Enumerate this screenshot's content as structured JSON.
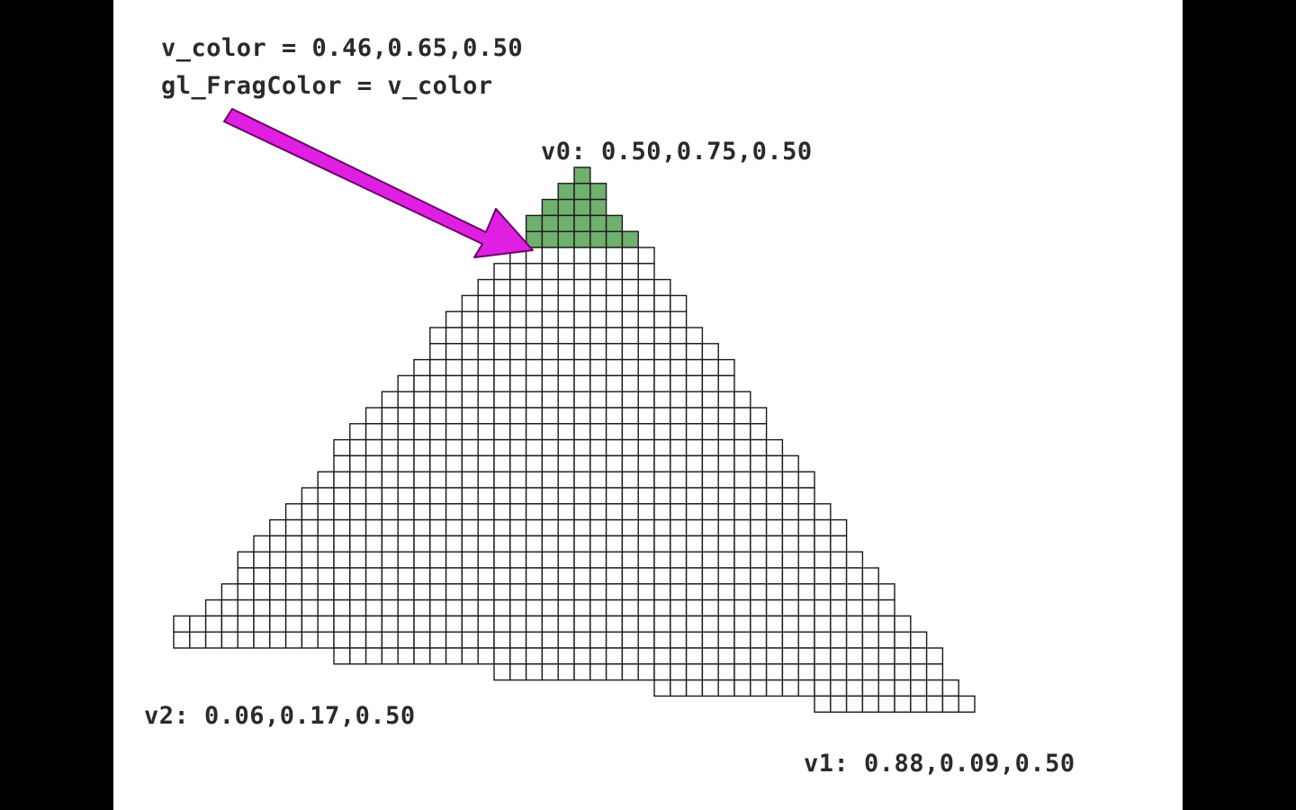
{
  "shader": {
    "line1": "v_color = 0.46,0.65,0.50",
    "line2": "gl_FragColor = v_color"
  },
  "vertices": {
    "v0": "v0: 0.50,0.75,0.50",
    "v1": "v1: 0.88,0.09,0.50",
    "v2": "v2: 0.06,0.17,0.50"
  },
  "colors": {
    "background": "#000000",
    "panel": "#ffffff",
    "pixel_fill": "#ffffff",
    "pixel_shaded": "#6fb06f",
    "pixel_outline": "#1a1a1a",
    "arrow": "#e020e0",
    "arrow_outline": "#6a006a"
  }
}
